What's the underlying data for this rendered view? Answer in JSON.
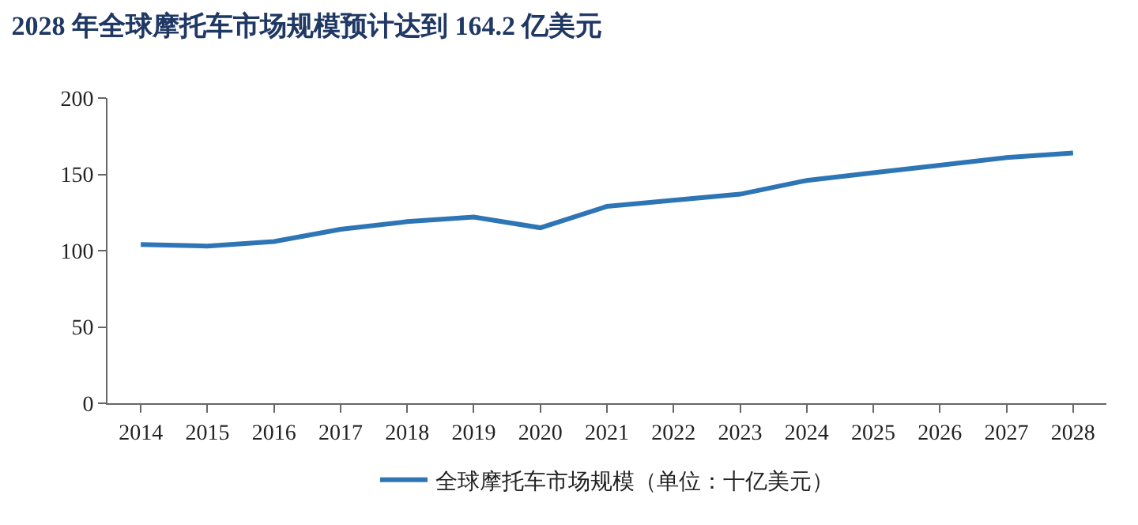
{
  "chart_data": {
    "type": "line",
    "title": "2028 年全球摩托车市场规模预计达到 164.2 亿美元",
    "categories": [
      "2014",
      "2015",
      "2016",
      "2017",
      "2018",
      "2019",
      "2020",
      "2021",
      "2022",
      "2023",
      "2024",
      "2025",
      "2026",
      "2027",
      "2028"
    ],
    "series": [
      {
        "name": "全球摩托车市场规模（单位：十亿美元）",
        "color": "#2e75b6",
        "values": [
          104,
          103,
          106,
          114,
          119,
          122,
          115,
          129,
          133,
          137,
          146,
          151,
          156,
          161,
          164
        ]
      }
    ],
    "ylim": [
      0,
      200
    ],
    "yticks": [
      0,
      50,
      100,
      150,
      200
    ],
    "legend": "bottom",
    "marker": "none",
    "line_style": "solid"
  }
}
